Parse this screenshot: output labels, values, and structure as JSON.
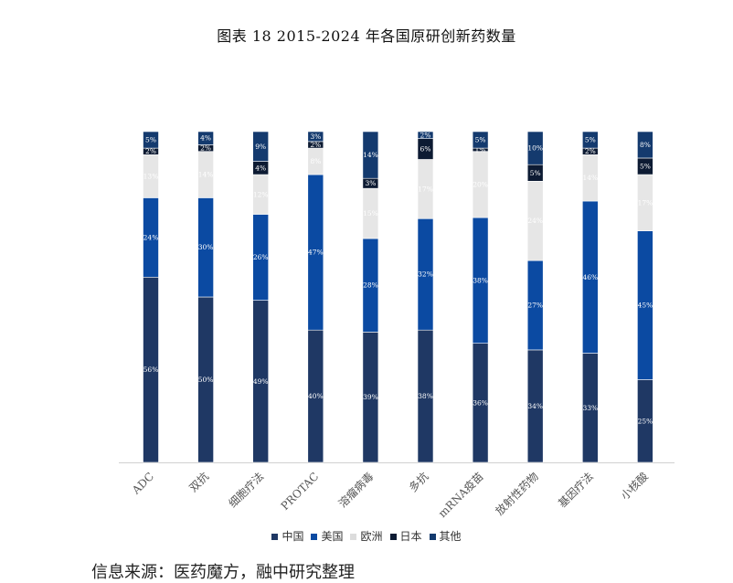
{
  "chart_data": {
    "type": "bar",
    "stacked": true,
    "title": "图表 18 2015-2024 年各国原研创新药数量",
    "categories": [
      "ADC",
      "双抗",
      "细胞疗法",
      "PROTAC",
      "溶瘤病毒",
      "多抗",
      "mRNA疫苗",
      "放射性药物",
      "基因疗法",
      "小核酸"
    ],
    "ylim": [
      0,
      100
    ],
    "grid": false,
    "legend_position": "bottom",
    "series": [
      {
        "name": "中国",
        "color": "#1f3864",
        "values": [
          56,
          50,
          49,
          40,
          39,
          38,
          36,
          34,
          33,
          25
        ],
        "labels": [
          "56%",
          "50%",
          "49%",
          "40%",
          "39%",
          "38%",
          "36%",
          "34%",
          "33%",
          "25%"
        ]
      },
      {
        "name": "美国",
        "color": "#0b4aa2",
        "values": [
          24,
          30,
          26,
          47,
          28,
          32,
          38,
          27,
          46,
          45
        ],
        "labels": [
          "24%",
          "30%",
          "26%",
          "47%",
          "28%",
          "32%",
          "38%",
          "27%",
          "46%",
          "45%"
        ]
      },
      {
        "name": "欧洲",
        "color": "#e6e6e6",
        "values": [
          13,
          14,
          12,
          8,
          15,
          17,
          20,
          24,
          14,
          17
        ],
        "labels": [
          "13%",
          "14%",
          "12%",
          "8%",
          "15%",
          "17%",
          "20%",
          "24%",
          "14%",
          "17%"
        ]
      },
      {
        "name": "日本",
        "color": "#0d1b33",
        "values": [
          2,
          2,
          4,
          2,
          3,
          6,
          1,
          5,
          2,
          5
        ],
        "labels": [
          "2%",
          "2%",
          "4%",
          "2%",
          "3%",
          "6%",
          "1%",
          "5%",
          "2%",
          "5%"
        ]
      },
      {
        "name": "其他",
        "color": "#143a6e",
        "values": [
          5,
          4,
          9,
          3,
          14,
          2,
          5,
          10,
          5,
          8
        ],
        "labels": [
          "5%",
          "4%",
          "9%",
          "3%",
          "14%",
          "2%",
          "5%",
          "10%",
          "5%",
          "8%"
        ]
      }
    ]
  },
  "source_text": "信息来源：医药魔方，融中研究整理"
}
